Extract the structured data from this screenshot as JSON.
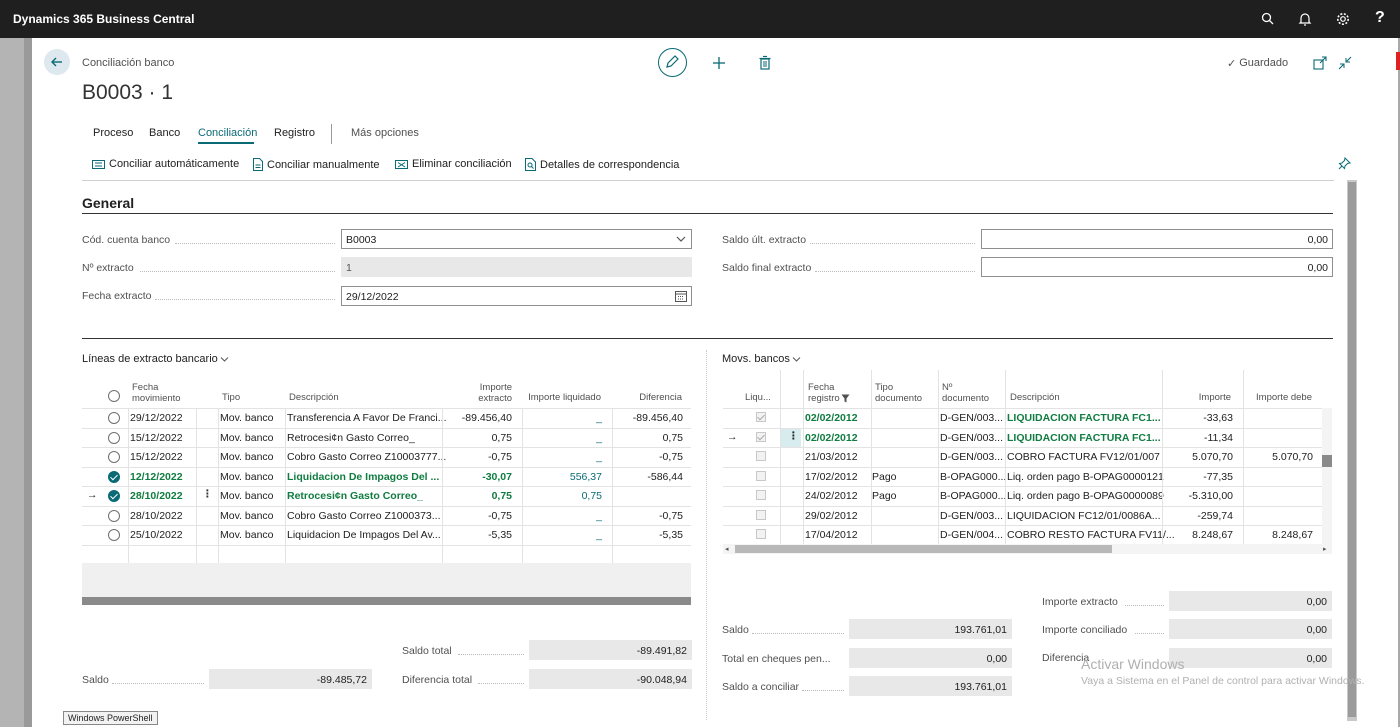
{
  "app": {
    "title": "Dynamics 365 Business Central"
  },
  "header": {
    "breadcrumb": "Conciliación banco",
    "title": "B0003 · 1",
    "saved_label": "Guardado"
  },
  "tabs": [
    "Proceso",
    "Banco",
    "Conciliación",
    "Registro",
    "Más opciones"
  ],
  "actions": [
    "Conciliar automáticamente",
    "Conciliar manualmente",
    "Eliminar conciliación",
    "Detalles de correspondencia"
  ],
  "general": {
    "title": "General",
    "fields": {
      "cuenta_label": "Cód. cuenta banco",
      "cuenta_value": "B0003",
      "extracto_label": "Nº extracto",
      "extracto_value": "1",
      "fecha_label": "Fecha extracto",
      "fecha_value": "29/12/2022",
      "saldo_ult_label": "Saldo últ. extracto",
      "saldo_ult_value": "0,00",
      "saldo_final_label": "Saldo final extracto",
      "saldo_final_value": "0,00"
    }
  },
  "bank_lines": {
    "title": "Líneas de extracto bancario",
    "headers": {
      "fecha": "Fecha movimiento",
      "tipo": "Tipo",
      "descripcion": "Descripción",
      "importe": "Importe extracto",
      "liquidado": "Importe liquidado",
      "diferencia": "Diferencia"
    },
    "rows": [
      {
        "fecha": "29/12/2022",
        "tipo": "Mov. banco",
        "desc": "Transferencia A Favor De Franci...",
        "importe": "-89.456,40",
        "liq": "_",
        "dif": "-89.456,40",
        "checked": false,
        "bold": false,
        "current": false
      },
      {
        "fecha": "15/12/2022",
        "tipo": "Mov. banco",
        "desc": "Retrocesi¢n Gasto Correo_",
        "importe": "0,75",
        "liq": "_",
        "dif": "0,75",
        "checked": false,
        "bold": false,
        "current": false
      },
      {
        "fecha": "15/12/2022",
        "tipo": "Mov. banco",
        "desc": "Cobro Gasto Correo Z10003777...",
        "importe": "-0,75",
        "liq": "_",
        "dif": "-0,75",
        "checked": false,
        "bold": false,
        "current": false
      },
      {
        "fecha": "12/12/2022",
        "tipo": "Mov. banco",
        "desc": "Liquidacion De Impagos Del ...",
        "importe": "-30,07",
        "liq": "556,37",
        "dif": "-586,44",
        "checked": true,
        "bold": true,
        "current": false
      },
      {
        "fecha": "28/10/2022",
        "tipo": "Mov. banco",
        "desc": "Retrocesi¢n Gasto Correo_",
        "importe": "0,75",
        "liq": "0,75",
        "dif": "",
        "checked": true,
        "bold": true,
        "current": true
      },
      {
        "fecha": "28/10/2022",
        "tipo": "Mov. banco",
        "desc": "Cobro Gasto Correo Z1000373...",
        "importe": "-0,75",
        "liq": "_",
        "dif": "-0,75",
        "checked": false,
        "bold": false,
        "current": false
      },
      {
        "fecha": "25/10/2022",
        "tipo": "Mov. banco",
        "desc": "Liquidacion De Impagos Del Av...",
        "importe": "-5,35",
        "liq": "_",
        "dif": "-5,35",
        "checked": false,
        "bold": false,
        "current": false
      }
    ],
    "totals": {
      "saldo_label": "Saldo",
      "saldo_value": "-89.485,72",
      "saldo_total_label": "Saldo total",
      "saldo_total_value": "-89.491,82",
      "dif_total_label": "Diferencia total",
      "dif_total_value": "-90.048,94"
    }
  },
  "movs": {
    "title": "Movs. bancos",
    "headers": {
      "liq": "Liqu...",
      "fecha": "Fecha registro",
      "tipo": "Tipo documento",
      "num": "Nº documento",
      "desc": "Descripción",
      "importe": "Importe",
      "debe": "Importe debe"
    },
    "rows": [
      {
        "checked": true,
        "fecha": "02/02/2012",
        "tipo": "",
        "num": "D-GEN/003...",
        "desc": "LIQUIDACION FACTURA FC1...",
        "importe": "-33,63",
        "debe": "",
        "bold": true,
        "current": false
      },
      {
        "checked": true,
        "fecha": "02/02/2012",
        "tipo": "",
        "num": "D-GEN/003...",
        "desc": "LIQUIDACION FACTURA FC1...",
        "importe": "-11,34",
        "debe": "",
        "bold": true,
        "current": true
      },
      {
        "checked": false,
        "fecha": "21/03/2012",
        "tipo": "",
        "num": "D-GEN/003...",
        "desc": "COBRO FACTURA FV12/01/007",
        "importe": "5.070,70",
        "debe": "5.070,70",
        "bold": false,
        "current": false
      },
      {
        "checked": false,
        "fecha": "17/02/2012",
        "tipo": "Pago",
        "num": "B-OPAG000...",
        "desc": "Liq. orden pago B-OPAG0000121",
        "importe": "-77,35",
        "debe": "",
        "bold": false,
        "current": false
      },
      {
        "checked": false,
        "fecha": "24/02/2012",
        "tipo": "Pago",
        "num": "B-OPAG000...",
        "desc": "Liq. orden pago B-OPAG0000089",
        "importe": "-5.310,00",
        "debe": "",
        "bold": false,
        "current": false
      },
      {
        "checked": false,
        "fecha": "29/02/2012",
        "tipo": "",
        "num": "D-GEN/003...",
        "desc": "LIQUIDACION FC12/01/0086A...",
        "importe": "-259,74",
        "debe": "",
        "bold": false,
        "current": false
      },
      {
        "checked": false,
        "fecha": "17/04/2012",
        "tipo": "",
        "num": "D-GEN/004...",
        "desc": "COBRO RESTO FACTURA FV11/...",
        "importe": "8.248,67",
        "debe": "8.248,67",
        "bold": false,
        "current": false
      }
    ],
    "totals": {
      "saldo_label": "Saldo",
      "saldo_value": "193.761,01",
      "cheques_label": "Total en cheques pen...",
      "cheques_value": "0,00",
      "conciliar_label": "Saldo a conciliar",
      "conciliar_value": "193.761,01",
      "imp_ext_label": "Importe extracto",
      "imp_ext_value": "0,00",
      "imp_conc_label": "Importe conciliado",
      "imp_conc_value": "0,00",
      "dif_label": "Diferencia",
      "dif_value": "0,00"
    }
  },
  "overlay": {
    "activate_title": "Activar Windows",
    "activate_sub": "Vaya a Sistema en el Panel de control para activar Windows.",
    "taskbar_tooltip": "Windows PowerShell"
  }
}
